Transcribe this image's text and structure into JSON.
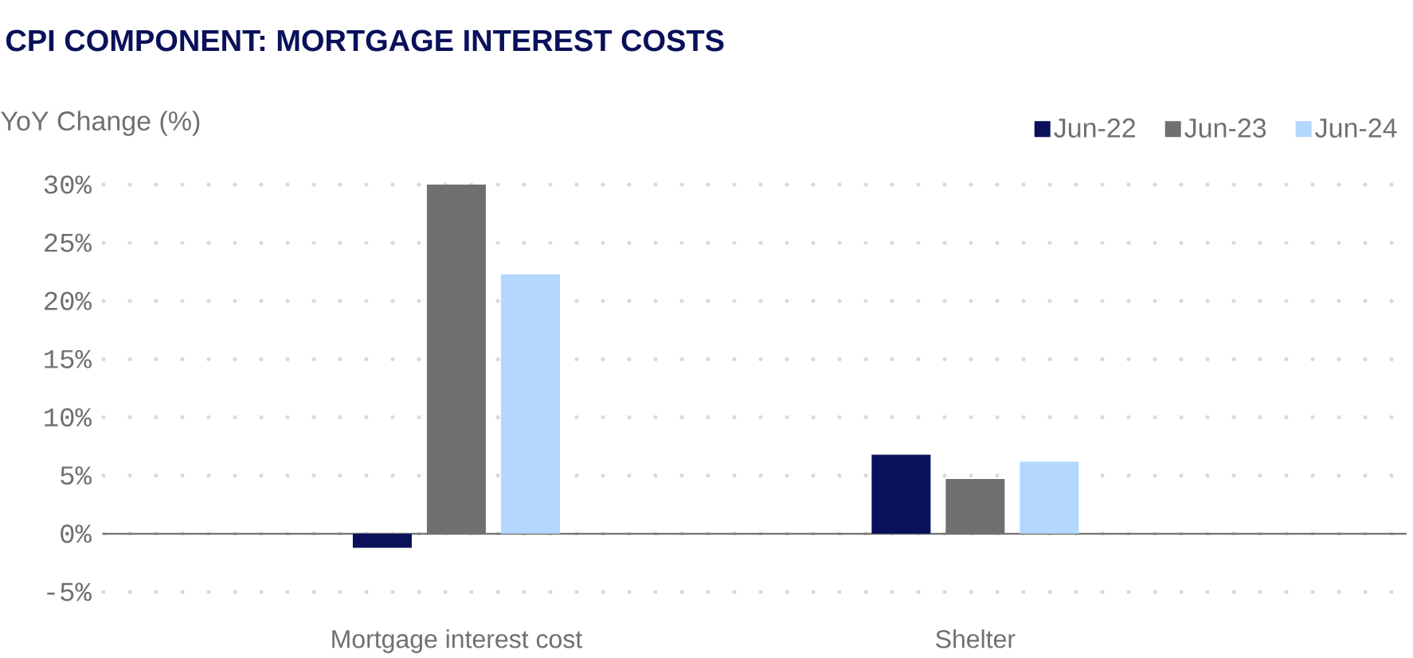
{
  "chart_data": {
    "type": "bar",
    "title": "CPI COMPONENT: MORTGAGE INTEREST COSTS",
    "ylabel": "YoY Change (%)",
    "categories": [
      "Mortgage interest cost",
      "Shelter"
    ],
    "series": [
      {
        "name": "Jun-22",
        "color": "#0a115a",
        "values": [
          -1.2,
          6.8
        ]
      },
      {
        "name": "Jun-23",
        "color": "#707070",
        "values": [
          30.0,
          4.7
        ]
      },
      {
        "name": "Jun-24",
        "color": "#b3d7fe",
        "values": [
          22.3,
          6.2
        ]
      }
    ],
    "ylim": [
      -5,
      30
    ],
    "yticks": [
      {
        "value": -5,
        "label": "-5%"
      },
      {
        "value": 0,
        "label": "0%"
      },
      {
        "value": 5,
        "label": "5%"
      },
      {
        "value": 10,
        "label": "10%"
      },
      {
        "value": 15,
        "label": "15%"
      },
      {
        "value": 20,
        "label": "20%"
      },
      {
        "value": 25,
        "label": "25%"
      },
      {
        "value": 30,
        "label": "30%"
      }
    ],
    "grid": "y",
    "legend": "top right"
  }
}
